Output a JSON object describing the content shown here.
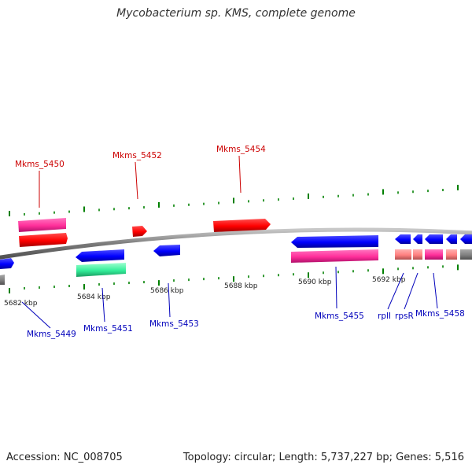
{
  "title": "Mycobacterium sp. KMS, complete genome",
  "footer": {
    "accession": "Accession: NC_008705",
    "topology": "Topology: circular; Length: 5,737,227 bp; Genes: 5,516"
  },
  "kbp_labels": [
    "5682 kbp",
    "5684 kbp",
    "5686 kbp",
    "5688 kbp",
    "5690 kbp",
    "5692 kbp"
  ],
  "gene_labels_top": [
    "Mkms_5450",
    "Mkms_5452",
    "Mkms_5454"
  ],
  "gene_labels_bottom": [
    "Mkms_5449",
    "Mkms_5451",
    "Mkms_5453",
    "Mkms_5455",
    "rplI",
    "rpsR",
    "Mkms_5458"
  ],
  "colors": {
    "forward_cds": "#ff0000",
    "reverse_cds": "#0000ff",
    "forward_feature": "#ff3399",
    "reverse_feature": "#ff3399",
    "rrna_like": "#33ff99",
    "trna_like": "#ff8080",
    "backbone": "#808080",
    "tick": "#008000",
    "top_label": "#cc0000",
    "bottom_label": "#0000bb"
  }
}
